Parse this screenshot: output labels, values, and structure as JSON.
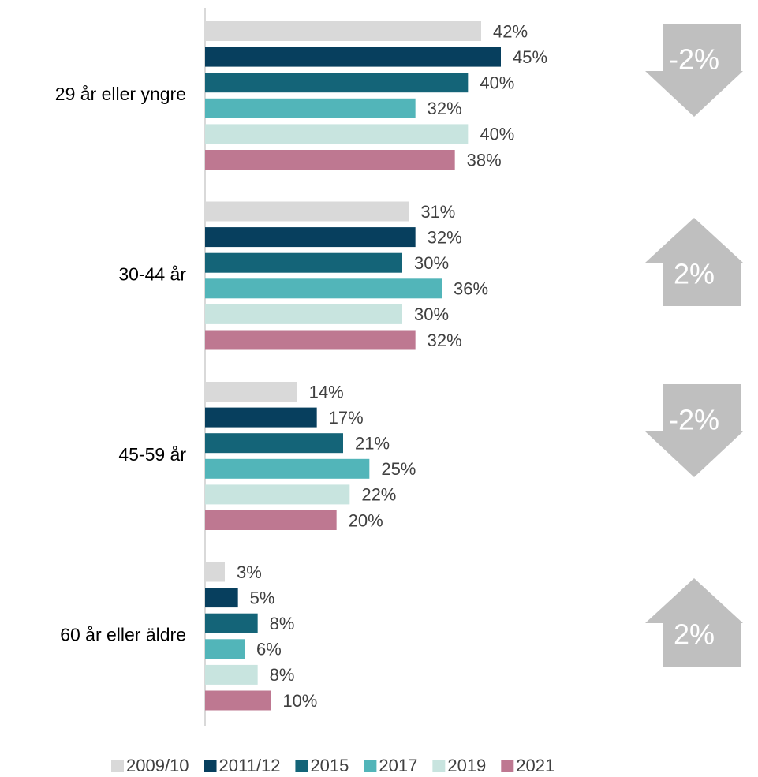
{
  "chart_data": {
    "type": "bar",
    "orientation": "horizontal",
    "categories": [
      "29 år eller yngre",
      "30-44 år",
      "45-59 år",
      "60 år eller äldre"
    ],
    "xlim": [
      0,
      60
    ],
    "series": [
      {
        "name": "2009/10",
        "color": "#d9d9d9",
        "values": [
          42,
          31,
          14,
          3
        ],
        "value_labels": [
          "42%",
          "31%",
          "14%",
          "3%"
        ]
      },
      {
        "name": "2011/12",
        "color": "#073f5e",
        "values": [
          45,
          32,
          17,
          5
        ],
        "value_labels": [
          "45%",
          "32%",
          "17%",
          "5%"
        ]
      },
      {
        "name": "2015",
        "color": "#146478",
        "values": [
          40,
          30,
          21,
          8
        ],
        "value_labels": [
          "40%",
          "30%",
          "21%",
          "8%"
        ]
      },
      {
        "name": "2017",
        "color": "#52b5b9",
        "values": [
          32,
          36,
          25,
          6
        ],
        "value_labels": [
          "32%",
          "36%",
          "25%",
          "6%"
        ]
      },
      {
        "name": "2019",
        "color": "#c8e4df",
        "values": [
          40,
          30,
          22,
          8
        ],
        "value_labels": [
          "40%",
          "30%",
          "22%",
          "8%"
        ]
      },
      {
        "name": "2021",
        "color": "#be7891",
        "values": [
          38,
          32,
          20,
          10
        ],
        "value_labels": [
          "38%",
          "32%",
          "20%",
          "10%"
        ]
      }
    ],
    "annotations": [
      {
        "text": "-2%",
        "direction": "down"
      },
      {
        "text": "2%",
        "direction": "up"
      },
      {
        "text": "-2%",
        "direction": "down"
      },
      {
        "text": "2%",
        "direction": "up"
      }
    ],
    "annotation_color": "#bfbfbf",
    "legend": "bottom"
  }
}
